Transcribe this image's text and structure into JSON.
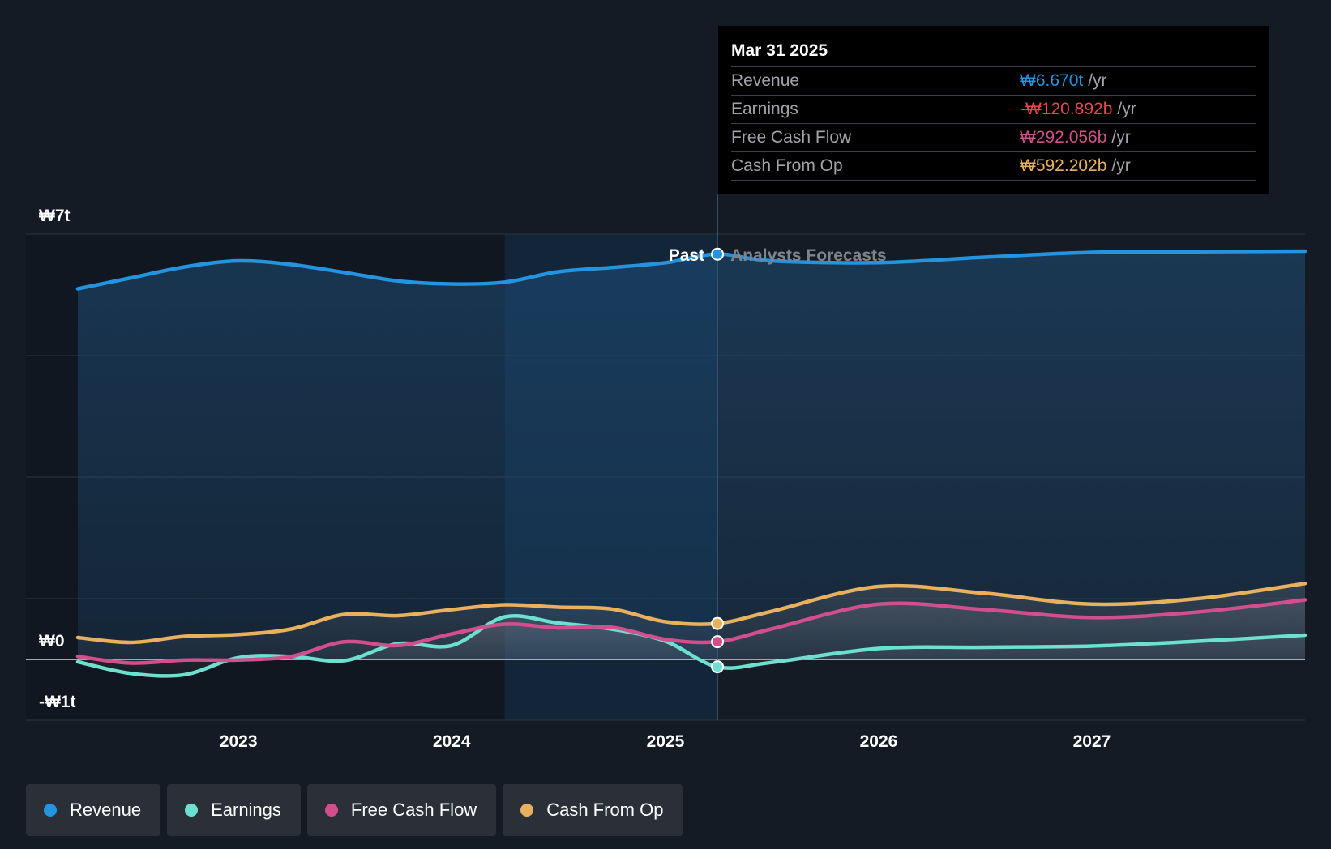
{
  "chart_data": {
    "type": "area",
    "y_ticks": [
      {
        "value": 7000,
        "label": "₩7t"
      },
      {
        "value": 0,
        "label": "₩0"
      },
      {
        "value": -1000,
        "label": "-₩1t"
      }
    ],
    "ylim": [
      -1000,
      7000
    ],
    "xlim": [
      "2022-04-01",
      "2028-01-01"
    ],
    "x_ticks": [
      {
        "date": "2023-01-01",
        "label": "2023"
      },
      {
        "date": "2024-01-01",
        "label": "2024"
      },
      {
        "date": "2025-01-01",
        "label": "2025"
      },
      {
        "date": "2026-01-01",
        "label": "2026"
      },
      {
        "date": "2027-01-01",
        "label": "2027"
      }
    ],
    "y_unit": "₩ billions",
    "highlight_start": "2024-04-01",
    "divider_date": "2025-03-31",
    "past_label": "Past",
    "forecast_label": "Analysts Forecasts",
    "series": [
      {
        "name": "Revenue",
        "color": "#2394df",
        "points": [
          [
            "2022-04-01",
            6100
          ],
          [
            "2022-07-01",
            6280
          ],
          [
            "2022-10-01",
            6460
          ],
          [
            "2023-01-01",
            6560
          ],
          [
            "2023-04-01",
            6500
          ],
          [
            "2023-07-01",
            6370
          ],
          [
            "2023-10-01",
            6230
          ],
          [
            "2024-01-01",
            6180
          ],
          [
            "2024-04-01",
            6210
          ],
          [
            "2024-07-01",
            6380
          ],
          [
            "2024-10-01",
            6450
          ],
          [
            "2025-01-01",
            6530
          ],
          [
            "2025-03-31",
            6670
          ],
          [
            "2025-07-01",
            6560
          ],
          [
            "2026-01-01",
            6530
          ],
          [
            "2026-07-01",
            6620
          ],
          [
            "2027-01-01",
            6700
          ],
          [
            "2027-07-01",
            6710
          ],
          [
            "2028-01-01",
            6720
          ]
        ]
      },
      {
        "name": "Earnings",
        "color": "#6ee0d0",
        "points": [
          [
            "2022-04-01",
            -40
          ],
          [
            "2022-07-01",
            -230
          ],
          [
            "2022-10-01",
            -250
          ],
          [
            "2023-01-01",
            30
          ],
          [
            "2023-04-01",
            50
          ],
          [
            "2023-07-01",
            -20
          ],
          [
            "2023-10-01",
            260
          ],
          [
            "2024-01-01",
            230
          ],
          [
            "2024-04-01",
            700
          ],
          [
            "2024-07-01",
            600
          ],
          [
            "2024-10-01",
            500
          ],
          [
            "2025-01-01",
            300
          ],
          [
            "2025-03-31",
            -121
          ],
          [
            "2025-07-01",
            -50
          ],
          [
            "2026-01-01",
            180
          ],
          [
            "2026-07-01",
            200
          ],
          [
            "2027-01-01",
            220
          ],
          [
            "2027-07-01",
            300
          ],
          [
            "2028-01-01",
            400
          ]
        ]
      },
      {
        "name": "Free Cash Flow",
        "color": "#d14f8c",
        "points": [
          [
            "2022-04-01",
            50
          ],
          [
            "2022-07-01",
            -60
          ],
          [
            "2022-10-01",
            -10
          ],
          [
            "2023-01-01",
            -10
          ],
          [
            "2023-04-01",
            50
          ],
          [
            "2023-07-01",
            290
          ],
          [
            "2023-10-01",
            230
          ],
          [
            "2024-01-01",
            420
          ],
          [
            "2024-04-01",
            580
          ],
          [
            "2024-07-01",
            520
          ],
          [
            "2024-10-01",
            530
          ],
          [
            "2025-01-01",
            330
          ],
          [
            "2025-03-31",
            292
          ],
          [
            "2025-07-01",
            500
          ],
          [
            "2026-01-01",
            910
          ],
          [
            "2026-07-01",
            820
          ],
          [
            "2027-01-01",
            690
          ],
          [
            "2027-07-01",
            780
          ],
          [
            "2028-01-01",
            980
          ]
        ]
      },
      {
        "name": "Cash From Op",
        "color": "#e9b15e",
        "points": [
          [
            "2022-04-01",
            360
          ],
          [
            "2022-07-01",
            280
          ],
          [
            "2022-10-01",
            380
          ],
          [
            "2023-01-01",
            410
          ],
          [
            "2023-04-01",
            500
          ],
          [
            "2023-07-01",
            740
          ],
          [
            "2023-10-01",
            720
          ],
          [
            "2024-01-01",
            820
          ],
          [
            "2024-04-01",
            900
          ],
          [
            "2024-07-01",
            860
          ],
          [
            "2024-10-01",
            830
          ],
          [
            "2025-01-01",
            620
          ],
          [
            "2025-03-31",
            592
          ],
          [
            "2025-07-01",
            790
          ],
          [
            "2026-01-01",
            1200
          ],
          [
            "2026-07-01",
            1090
          ],
          [
            "2027-01-01",
            910
          ],
          [
            "2027-07-01",
            1000
          ],
          [
            "2028-01-01",
            1250
          ]
        ]
      }
    ]
  },
  "tooltip": {
    "date": "Mar 31 2025",
    "rows": [
      {
        "label": "Revenue",
        "value": "₩6.670t",
        "unit": "/yr",
        "color": "#2394df"
      },
      {
        "label": "Earnings",
        "value": "-₩120.892b",
        "unit": "/yr",
        "color": "#e8474f"
      },
      {
        "label": "Free Cash Flow",
        "value": "₩292.056b",
        "unit": "/yr",
        "color": "#d14f8c"
      },
      {
        "label": "Cash From Op",
        "value": "₩592.202b",
        "unit": "/yr",
        "color": "#e9b15e"
      }
    ]
  },
  "legend": [
    {
      "label": "Revenue",
      "color": "#2394df"
    },
    {
      "label": "Earnings",
      "color": "#6ee0d0"
    },
    {
      "label": "Free Cash Flow",
      "color": "#d14f8c"
    },
    {
      "label": "Cash From Op",
      "color": "#e9b15e"
    }
  ]
}
